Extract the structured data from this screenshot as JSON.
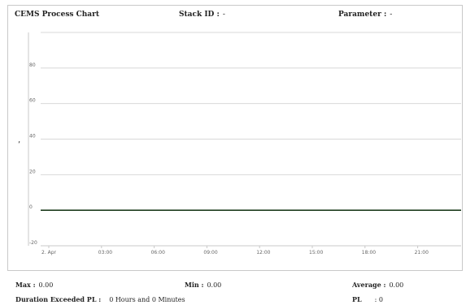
{
  "header": {
    "title": "CEMS Process Chart",
    "stack_label": "Stack ID :",
    "stack_value": "-",
    "parameter_label": "Parameter :",
    "parameter_value": "-"
  },
  "chart_data": {
    "type": "line",
    "title": "CEMS Process Chart",
    "ylabel": ",",
    "xlabel": "",
    "y_ticks": [
      "80",
      "60",
      "40",
      "20",
      "0",
      "-20"
    ],
    "ylim": [
      -20,
      100
    ],
    "x_ticks": [
      "2. Apr",
      "03:00",
      "06:00",
      "09:00",
      "12:00",
      "15:00",
      "18:00",
      "21:00"
    ],
    "grid": true,
    "series": [
      {
        "x": [
          "2. Apr",
          "21:00"
        ],
        "values": [
          0,
          0
        ]
      }
    ]
  },
  "footer": {
    "max_label": "Max :",
    "max_value": "0.00",
    "min_label": "Min :",
    "min_value": "0.00",
    "avg_label": "Average :",
    "avg_value": "0.00",
    "duration_label": "Duration Exceeded PL :",
    "duration_value": "0 Hours and 0 Minutes",
    "pl_label": "PL",
    "pl_value": ": 0"
  },
  "colors": {
    "line": "#1f3d1f",
    "grid": "#d8d8d8",
    "border": "#c9c9c9"
  }
}
